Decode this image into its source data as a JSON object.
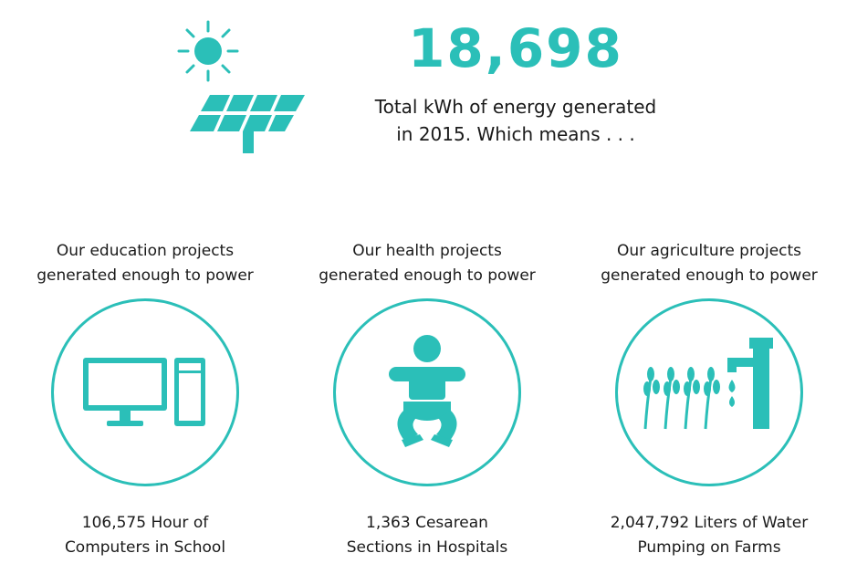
{
  "headline": {
    "number": "18,698",
    "line1": "Total kWh of energy generated",
    "line2": "in 2015. Which means . . ."
  },
  "columns": [
    {
      "heading_line1": "Our education projects",
      "heading_line2": "generated enough to power",
      "icon": "computer-icon",
      "result_line1": "106,575 Hour of",
      "result_line2": "Computers in School"
    },
    {
      "heading_line1": "Our health projects",
      "heading_line2": "generated enough to power",
      "icon": "baby-icon",
      "result_line1": "1,363 Cesarean",
      "result_line2": "Sections in Hospitals"
    },
    {
      "heading_line1": "Our agriculture projects",
      "heading_line2": "generated enough to power",
      "icon": "wheat-water-pump-icon",
      "result_line1": "2,047,792 Liters of Water",
      "result_line2": "Pumping on Farms"
    }
  ],
  "colors": {
    "accent": "#2bbfb8",
    "text": "#1a1a1a",
    "background": "#ffffff"
  }
}
